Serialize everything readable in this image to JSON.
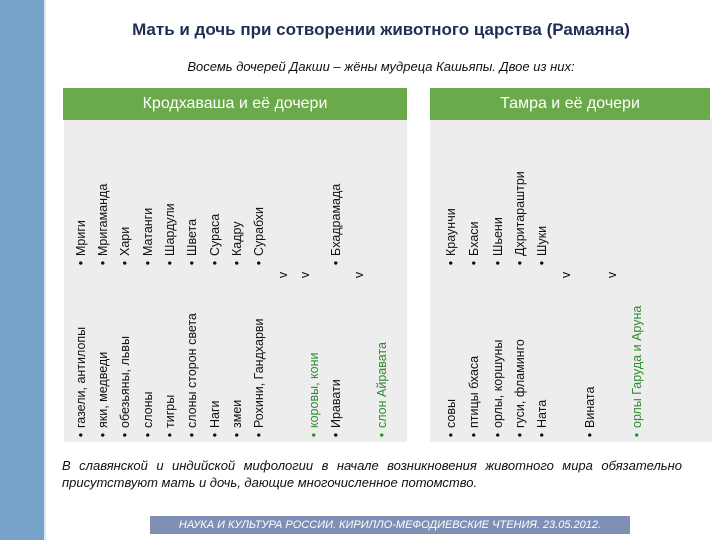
{
  "title": "Мать и дочь при сотворении животного царства (Рамаяна)",
  "subtitle": "Восемь дочерей Дакши – жёны мудреца Кашьяпы. Двое из них:",
  "headers": {
    "left": "Кродхаваша и её дочери",
    "right": "Тамра и её дочери"
  },
  "bullet": "•",
  "columns": [
    {
      "bottom": "газели, антилопы",
      "top": "Мриги"
    },
    {
      "bottom": "яки, медведи",
      "top": "Мригаманда"
    },
    {
      "bottom": "обезьяны, львы",
      "top": "Хари"
    },
    {
      "bottom": "слоны",
      "top": "Матанги"
    },
    {
      "bottom": "тигры",
      "top": "Шардули"
    },
    {
      "bottom": "слоны сторон света",
      "top": "Швета"
    },
    {
      "bottom": "Наги",
      "top": "Сураса"
    },
    {
      "bottom": "змеи",
      "top": "Кадру"
    },
    {
      "bottom": "Рохини, Гандхарви",
      "top": "Сурабхи"
    },
    {
      "mark": "v"
    },
    {
      "mark": "v"
    },
    {
      "bottom": "коровы, кони",
      "bottomGreen": true
    },
    {
      "bottom": "Иравати",
      "top": "Бхадрамада"
    },
    {
      "mark": "v"
    },
    {
      "bottom": "слон Айравата",
      "bottomGreen": true
    },
    {
      "bottom": "совы",
      "top": "Краунчи"
    },
    {
      "bottom": "птицы бхаса",
      "top": "Бхаси"
    },
    {
      "bottom": "орлы, коршуны",
      "top": "Шьени"
    },
    {
      "bottom": "гуси, фламинго",
      "top": "Дхритараштри"
    },
    {
      "bottom": "Ната",
      "top": "Шуки"
    },
    {
      "mark": "v"
    },
    {
      "bottom": "Вината"
    },
    {
      "mark": "v"
    },
    {
      "bottom": "орлы Гаруда и Аруна",
      "bottomGreen": true
    }
  ],
  "bottom_text": "В славянской и индийской мифологии в начале возникновения животного мира обязательно присутствуют мать и дочь, дающие многочисленное потомство.",
  "footer": "НАУКА И КУЛЬТУРА РОССИИ. КИРИЛЛО-МЕФОДИЕВСКИЕ ЧТЕНИЯ. 23.05.2012."
}
